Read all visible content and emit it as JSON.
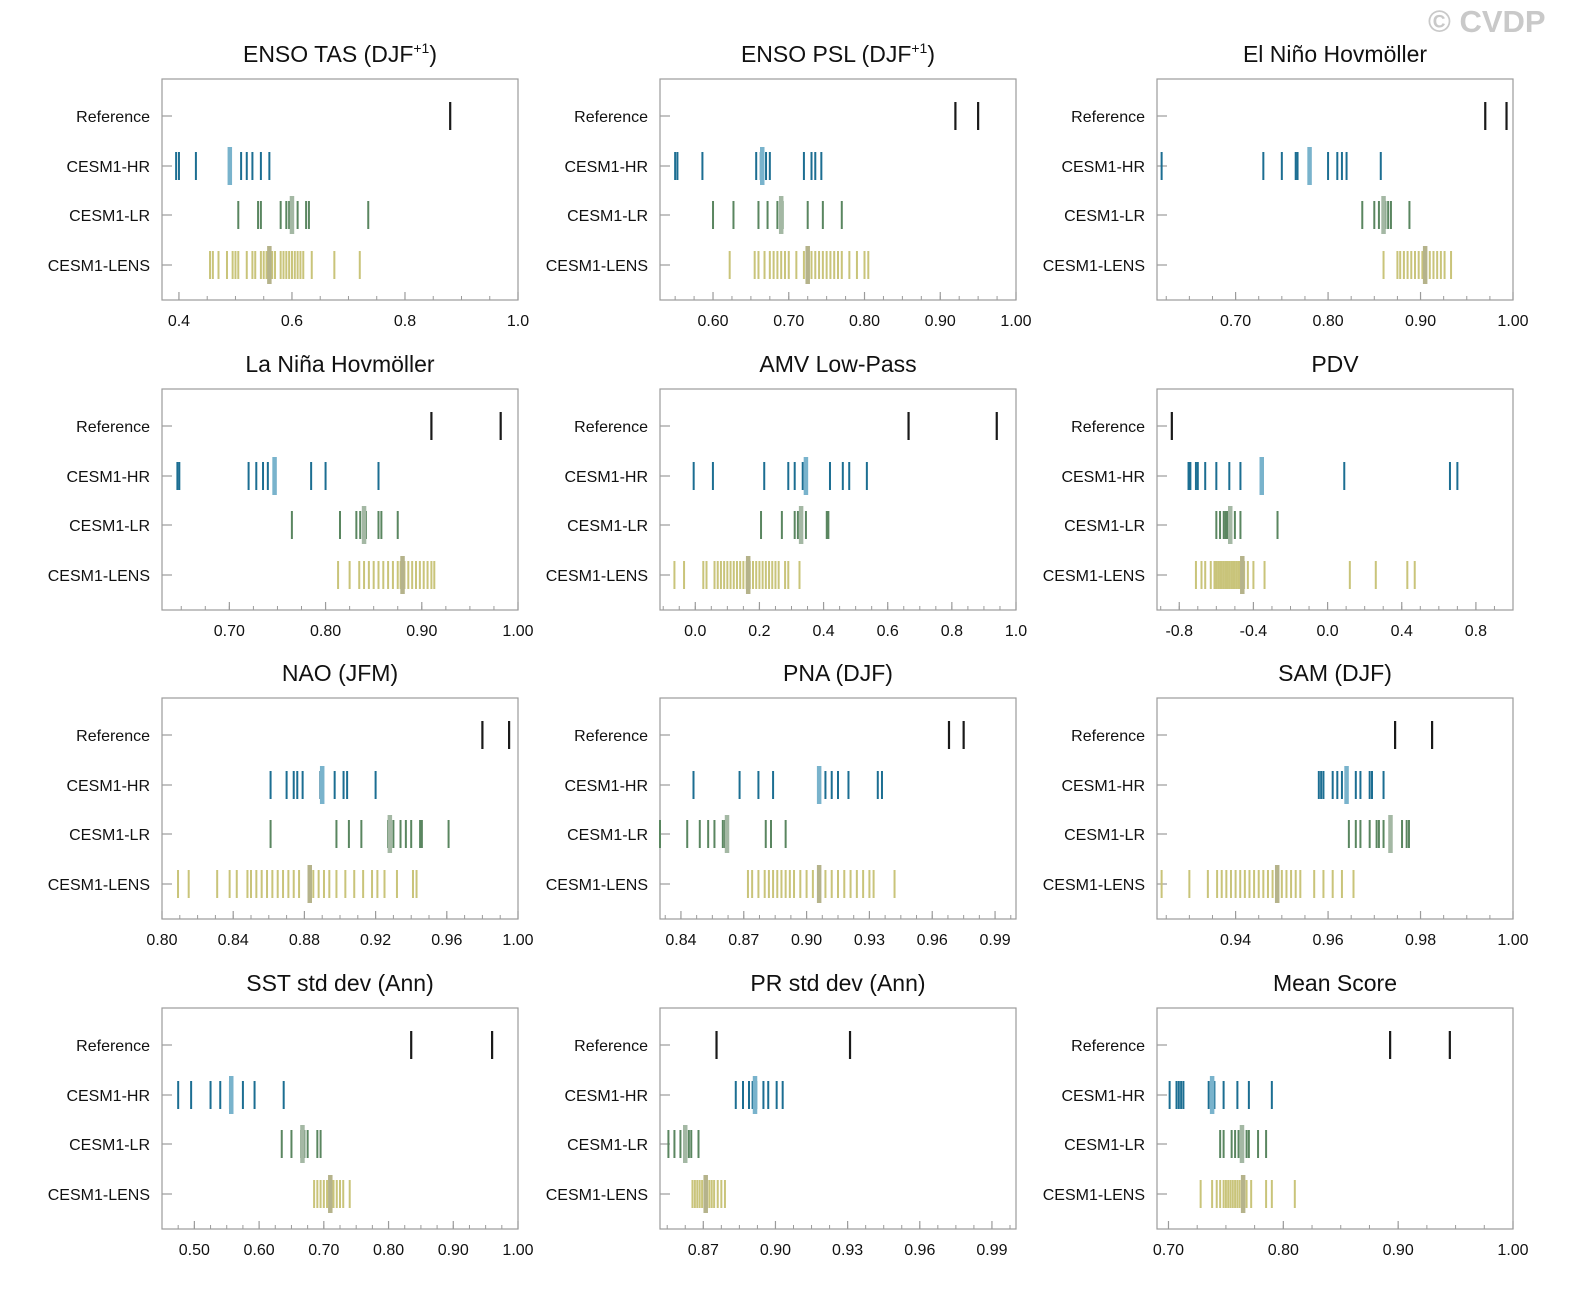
{
  "watermark": "© CVDP",
  "colors": {
    "Reference": "#1a1a1a",
    "CESM1-HR": "#1c6e92",
    "CESM1-LR": "#5a8660",
    "CESM1-LENS": "#c9c47a",
    "HR_mean": "#79b3cc",
    "LR_mean": "#a4b8a4",
    "LENS_mean": "#b5b38b",
    "frame": "#9b9b9b"
  },
  "row_labels": [
    "Reference",
    "CESM1-HR",
    "CESM1-LR",
    "CESM1-LENS"
  ],
  "chart_data": [
    {
      "type": "strip",
      "title": "ENSO TAS (DJF",
      "title_sup": "+1",
      "title_end": ")",
      "xlim": [
        0.37,
        1.0
      ],
      "ticks": [
        0.4,
        0.6,
        0.8,
        1.0
      ],
      "tick_labels": [
        "0.4",
        "0.6",
        "0.8",
        "1.0"
      ],
      "series": {
        "Reference": [
          0.88
        ],
        "CESM1-HR": [
          0.395,
          0.4,
          0.43,
          0.49,
          0.51,
          0.52,
          0.53,
          0.545,
          0.56
        ],
        "CESM1-LR": [
          0.505,
          0.54,
          0.545,
          0.58,
          0.59,
          0.595,
          0.61,
          0.625,
          0.63,
          0.735
        ],
        "CESM1-LENS": [
          0.455,
          0.46,
          0.47,
          0.485,
          0.495,
          0.5,
          0.505,
          0.52,
          0.53,
          0.535,
          0.545,
          0.55,
          0.555,
          0.565,
          0.57,
          0.58,
          0.585,
          0.59,
          0.595,
          0.6,
          0.605,
          0.61,
          0.615,
          0.62,
          0.635,
          0.675,
          0.72
        ]
      },
      "means": {
        "CESM1-HR": 0.49,
        "CESM1-LR": 0.6,
        "CESM1-LENS": 0.56
      }
    },
    {
      "type": "strip",
      "title": "ENSO PSL (DJF",
      "title_sup": "+1",
      "title_end": ")",
      "xlim": [
        0.53,
        1.0
      ],
      "ticks": [
        0.6,
        0.7,
        0.8,
        0.9,
        1.0
      ],
      "tick_labels": [
        "0.60",
        "0.70",
        "0.80",
        "0.90",
        "1.00"
      ],
      "series": {
        "Reference": [
          0.92,
          0.95
        ],
        "CESM1-HR": [
          0.55,
          0.553,
          0.586,
          0.657,
          0.663,
          0.67,
          0.675,
          0.72,
          0.73,
          0.735,
          0.743
        ],
        "CESM1-LR": [
          0.6,
          0.627,
          0.66,
          0.672,
          0.685,
          0.69,
          0.692,
          0.725,
          0.745,
          0.77
        ],
        "CESM1-LENS": [
          0.622,
          0.655,
          0.66,
          0.668,
          0.675,
          0.68,
          0.685,
          0.69,
          0.695,
          0.7,
          0.71,
          0.72,
          0.73,
          0.735,
          0.74,
          0.745,
          0.75,
          0.755,
          0.76,
          0.765,
          0.77,
          0.78,
          0.79,
          0.8,
          0.805
        ]
      },
      "means": {
        "CESM1-HR": 0.665,
        "CESM1-LR": 0.69,
        "CESM1-LENS": 0.725
      }
    },
    {
      "type": "strip",
      "title": "El Niño Hovmöller",
      "title_sup": "",
      "title_end": "",
      "xlim": [
        0.615,
        1.0
      ],
      "ticks": [
        0.7,
        0.8,
        0.9,
        1.0
      ],
      "tick_labels": [
        "0.70",
        "0.80",
        "0.90",
        "1.00"
      ],
      "series": {
        "Reference": [
          0.97,
          0.993
        ],
        "CESM1-HR": [
          0.62,
          0.73,
          0.75,
          0.765,
          0.767,
          0.78,
          0.8,
          0.81,
          0.815,
          0.82,
          0.857
        ],
        "CESM1-LR": [
          0.837,
          0.85,
          0.855,
          0.86,
          0.862,
          0.865,
          0.868,
          0.888
        ],
        "CESM1-LENS": [
          0.86,
          0.875,
          0.878,
          0.882,
          0.886,
          0.89,
          0.894,
          0.898,
          0.902,
          0.906,
          0.91,
          0.914,
          0.918,
          0.922,
          0.926,
          0.933
        ]
      },
      "means": {
        "CESM1-HR": 0.78,
        "CESM1-LR": 0.86,
        "CESM1-LENS": 0.905
      }
    },
    {
      "type": "strip",
      "title": "La Niña Hovmöller",
      "title_sup": "",
      "title_end": "",
      "xlim": [
        0.63,
        1.0
      ],
      "ticks": [
        0.7,
        0.8,
        0.9,
        1.0
      ],
      "tick_labels": [
        "0.70",
        "0.80",
        "0.90",
        "1.00"
      ],
      "series": {
        "Reference": [
          0.91,
          0.982
        ],
        "CESM1-HR": [
          0.646,
          0.648,
          0.72,
          0.728,
          0.735,
          0.74,
          0.747,
          0.785,
          0.8,
          0.855
        ],
        "CESM1-LR": [
          0.765,
          0.815,
          0.832,
          0.836,
          0.84,
          0.842,
          0.855,
          0.858,
          0.875
        ],
        "CESM1-LENS": [
          0.813,
          0.825,
          0.835,
          0.84,
          0.845,
          0.85,
          0.855,
          0.86,
          0.865,
          0.87,
          0.875,
          0.878,
          0.882,
          0.886,
          0.89,
          0.894,
          0.898,
          0.902,
          0.906,
          0.91,
          0.913
        ]
      },
      "means": {
        "CESM1-HR": 0.747,
        "CESM1-LR": 0.84,
        "CESM1-LENS": 0.88
      }
    },
    {
      "type": "strip",
      "title": "AMV Low-Pass",
      "title_sup": "",
      "title_end": "",
      "xlim": [
        -0.11,
        1.0
      ],
      "ticks": [
        0.0,
        0.2,
        0.4,
        0.6,
        0.8,
        1.0
      ],
      "tick_labels": [
        "0.0",
        "0.2",
        "0.4",
        "0.6",
        "0.8",
        "1.0"
      ],
      "series": {
        "Reference": [
          0.665,
          0.94
        ],
        "CESM1-HR": [
          -0.005,
          0.055,
          0.215,
          0.29,
          0.31,
          0.335,
          0.42,
          0.46,
          0.48,
          0.535
        ],
        "CESM1-LR": [
          0.205,
          0.27,
          0.31,
          0.32,
          0.33,
          0.345,
          0.41,
          0.415
        ],
        "CESM1-LENS": [
          -0.065,
          -0.035,
          0.025,
          0.035,
          0.06,
          0.07,
          0.08,
          0.09,
          0.1,
          0.11,
          0.12,
          0.13,
          0.14,
          0.15,
          0.16,
          0.17,
          0.18,
          0.19,
          0.2,
          0.21,
          0.22,
          0.23,
          0.24,
          0.25,
          0.26,
          0.28,
          0.29,
          0.325
        ]
      },
      "means": {
        "CESM1-HR": 0.345,
        "CESM1-LR": 0.33,
        "CESM1-LENS": 0.165
      }
    },
    {
      "type": "strip",
      "title": "PDV",
      "title_sup": "",
      "title_end": "",
      "xlim": [
        -0.92,
        1.0
      ],
      "ticks": [
        -0.8,
        -0.4,
        0.0,
        0.4,
        0.8
      ],
      "tick_labels": [
        "-0.8",
        "-0.4",
        "0.0",
        "0.4",
        "0.8"
      ],
      "series": {
        "Reference": [
          -0.84
        ],
        "CESM1-HR": [
          -0.75,
          -0.74,
          -0.71,
          -0.7,
          -0.66,
          -0.6,
          -0.53,
          -0.47,
          -0.35,
          0.09,
          0.66,
          0.7
        ],
        "CESM1-LR": [
          -0.6,
          -0.58,
          -0.56,
          -0.55,
          -0.54,
          -0.52,
          -0.5,
          -0.47,
          -0.27
        ],
        "CESM1-LENS": [
          -0.71,
          -0.68,
          -0.66,
          -0.63,
          -0.61,
          -0.6,
          -0.59,
          -0.58,
          -0.57,
          -0.56,
          -0.55,
          -0.54,
          -0.53,
          -0.52,
          -0.51,
          -0.5,
          -0.49,
          -0.48,
          -0.47,
          -0.45,
          -0.43,
          -0.4,
          -0.34,
          0.12,
          0.26,
          0.43,
          0.47
        ]
      },
      "means": {
        "CESM1-HR": -0.355,
        "CESM1-LR": -0.525,
        "CESM1-LENS": -0.46
      }
    },
    {
      "type": "strip",
      "title": "NAO (JFM)",
      "title_sup": "",
      "title_end": "",
      "xlim": [
        0.8,
        1.0
      ],
      "ticks": [
        0.8,
        0.84,
        0.88,
        0.92,
        0.96,
        1.0
      ],
      "tick_labels": [
        "0.80",
        "0.84",
        "0.88",
        "0.92",
        "0.96",
        "1.00"
      ],
      "series": {
        "Reference": [
          0.98,
          0.995
        ],
        "CESM1-HR": [
          0.861,
          0.87,
          0.874,
          0.876,
          0.879,
          0.889,
          0.89,
          0.897,
          0.902,
          0.904,
          0.92
        ],
        "CESM1-LR": [
          0.861,
          0.898,
          0.905,
          0.912,
          0.927,
          0.93,
          0.934,
          0.937,
          0.94,
          0.945,
          0.946,
          0.961
        ],
        "CESM1-LENS": [
          0.809,
          0.815,
          0.831,
          0.838,
          0.842,
          0.848,
          0.85,
          0.853,
          0.856,
          0.859,
          0.862,
          0.865,
          0.868,
          0.871,
          0.874,
          0.877,
          0.885,
          0.888,
          0.891,
          0.894,
          0.898,
          0.903,
          0.908,
          0.913,
          0.918,
          0.921,
          0.925,
          0.932,
          0.941,
          0.943
        ]
      },
      "means": {
        "CESM1-HR": 0.89,
        "CESM1-LR": 0.928,
        "CESM1-LENS": 0.883
      }
    },
    {
      "type": "strip",
      "title": "PNA (DJF)",
      "title_sup": "",
      "title_end": "",
      "xlim": [
        0.83,
        1.0
      ],
      "ticks": [
        0.84,
        0.87,
        0.9,
        0.93,
        0.96,
        0.99
      ],
      "tick_labels": [
        "0.84",
        "0.87",
        "0.90",
        "0.93",
        "0.96",
        "0.99"
      ],
      "series": {
        "Reference": [
          0.968,
          0.975
        ],
        "CESM1-HR": [
          0.846,
          0.868,
          0.877,
          0.884,
          0.906,
          0.909,
          0.912,
          0.915,
          0.92,
          0.934,
          0.936
        ],
        "CESM1-LR": [
          0.83,
          0.843,
          0.849,
          0.853,
          0.856,
          0.86,
          0.861,
          0.862,
          0.8805,
          0.883,
          0.89
        ],
        "CESM1-LENS": [
          0.872,
          0.874,
          0.877,
          0.88,
          0.882,
          0.884,
          0.886,
          0.888,
          0.89,
          0.892,
          0.894,
          0.897,
          0.9,
          0.903,
          0.906,
          0.909,
          0.912,
          0.915,
          0.918,
          0.921,
          0.924,
          0.927,
          0.93,
          0.932,
          0.942
        ]
      },
      "means": {
        "CESM1-HR": 0.906,
        "CESM1-LR": 0.862,
        "CESM1-LENS": 0.906
      }
    },
    {
      "type": "strip",
      "title": "SAM (DJF)",
      "title_sup": "",
      "title_end": "",
      "xlim": [
        0.923,
        1.0
      ],
      "ticks": [
        0.94,
        0.96,
        0.98,
        1.0
      ],
      "tick_labels": [
        "0.94",
        "0.96",
        "0.98",
        "1.00"
      ],
      "series": {
        "Reference": [
          0.9745,
          0.9825
        ],
        "CESM1-HR": [
          0.958,
          0.9585,
          0.959,
          0.961,
          0.962,
          0.963,
          0.964,
          0.966,
          0.967,
          0.969,
          0.9695,
          0.972
        ],
        "CESM1-LR": [
          0.9645,
          0.966,
          0.967,
          0.969,
          0.9705,
          0.971,
          0.972,
          0.9735,
          0.976,
          0.977,
          0.9775
        ],
        "CESM1-LENS": [
          0.924,
          0.93,
          0.934,
          0.936,
          0.937,
          0.938,
          0.939,
          0.94,
          0.941,
          0.942,
          0.943,
          0.944,
          0.945,
          0.946,
          0.947,
          0.948,
          0.949,
          0.95,
          0.951,
          0.952,
          0.953,
          0.954,
          0.957,
          0.959,
          0.961,
          0.963,
          0.9655
        ]
      },
      "means": {
        "CESM1-HR": 0.964,
        "CESM1-LR": 0.9735,
        "CESM1-LENS": 0.949
      }
    },
    {
      "type": "strip",
      "title": "SST std dev (Ann)",
      "title_sup": "",
      "title_end": "",
      "xlim": [
        0.45,
        1.0
      ],
      "ticks": [
        0.5,
        0.6,
        0.7,
        0.8,
        0.9,
        1.0
      ],
      "tick_labels": [
        "0.50",
        "0.60",
        "0.70",
        "0.80",
        "0.90",
        "1.00"
      ],
      "series": {
        "Reference": [
          0.835,
          0.96
        ],
        "CESM1-HR": [
          0.475,
          0.495,
          0.525,
          0.54,
          0.555,
          0.575,
          0.593,
          0.638
        ],
        "CESM1-LR": [
          0.635,
          0.65,
          0.665,
          0.67,
          0.675,
          0.69,
          0.695
        ],
        "CESM1-LENS": [
          0.685,
          0.69,
          0.695,
          0.7,
          0.705,
          0.71,
          0.715,
          0.72,
          0.725,
          0.73,
          0.74
        ]
      },
      "means": {
        "CESM1-HR": 0.557,
        "CESM1-LR": 0.667,
        "CESM1-LENS": 0.71
      }
    },
    {
      "type": "strip",
      "title": "PR std dev (Ann)",
      "title_sup": "",
      "title_end": "",
      "xlim": [
        0.852,
        1.0
      ],
      "ticks": [
        0.87,
        0.9,
        0.93,
        0.96,
        0.99
      ],
      "tick_labels": [
        "0.87",
        "0.90",
        "0.93",
        "0.96",
        "0.99"
      ],
      "series": {
        "Reference": [
          0.8755,
          0.931
        ],
        "CESM1-HR": [
          0.8835,
          0.8865,
          0.889,
          0.8905,
          0.892,
          0.895,
          0.897,
          0.9005,
          0.903
        ],
        "CESM1-LR": [
          0.8555,
          0.858,
          0.8605,
          0.8625,
          0.863,
          0.864,
          0.865,
          0.868
        ],
        "CESM1-LENS": [
          0.8655,
          0.8665,
          0.8675,
          0.8685,
          0.8695,
          0.8705,
          0.8715,
          0.8725,
          0.8735,
          0.8745,
          0.876,
          0.8775,
          0.879
        ]
      },
      "means": {
        "CESM1-HR": 0.8915,
        "CESM1-LR": 0.8625,
        "CESM1-LENS": 0.871
      }
    },
    {
      "type": "strip",
      "title": "Mean Score",
      "title_sup": "",
      "title_end": "",
      "xlim": [
        0.69,
        1.0
      ],
      "ticks": [
        0.7,
        0.8,
        0.9,
        1.0
      ],
      "tick_labels": [
        "0.70",
        "0.80",
        "0.90",
        "1.00"
      ],
      "series": {
        "Reference": [
          0.893,
          0.945
        ],
        "CESM1-HR": [
          0.701,
          0.707,
          0.709,
          0.711,
          0.713,
          0.735,
          0.74,
          0.748,
          0.76,
          0.77,
          0.79
        ],
        "CESM1-LR": [
          0.745,
          0.748,
          0.755,
          0.758,
          0.761,
          0.765,
          0.768,
          0.77,
          0.778,
          0.785
        ],
        "CESM1-LENS": [
          0.728,
          0.738,
          0.742,
          0.745,
          0.748,
          0.75,
          0.752,
          0.754,
          0.756,
          0.758,
          0.76,
          0.762,
          0.765,
          0.768,
          0.772,
          0.785,
          0.79,
          0.81
        ]
      },
      "means": {
        "CESM1-HR": 0.738,
        "CESM1-LR": 0.764,
        "CESM1-LENS": 0.765
      }
    }
  ]
}
